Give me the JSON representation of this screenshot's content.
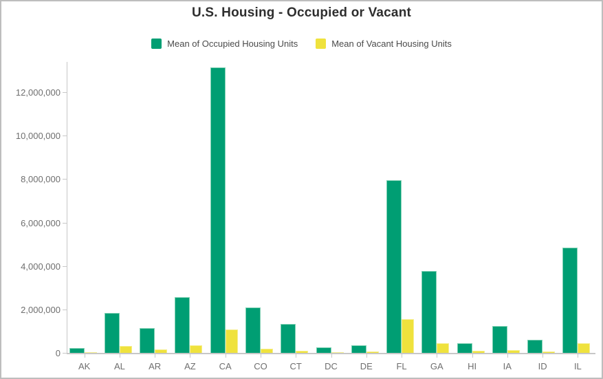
{
  "chart_data": {
    "type": "bar",
    "title": "U.S. Housing - Occupied or Vacant",
    "xlabel": "",
    "ylabel": "",
    "grid": false,
    "legend_position": "top",
    "ylim": [
      0,
      13400000
    ],
    "y_ticks": [
      {
        "value": 0,
        "label": "0"
      },
      {
        "value": 2000000,
        "label": "2,000,000"
      },
      {
        "value": 4000000,
        "label": "4,000,000"
      },
      {
        "value": 6000000,
        "label": "6,000,000"
      },
      {
        "value": 8000000,
        "label": "8,000,000"
      },
      {
        "value": 10000000,
        "label": "10,000,000"
      },
      {
        "value": 12000000,
        "label": "12,000,000"
      }
    ],
    "categories": [
      "AK",
      "AL",
      "AR",
      "AZ",
      "CA",
      "CO",
      "CT",
      "DC",
      "DE",
      "FL",
      "GA",
      "HI",
      "IA",
      "ID",
      "IL"
    ],
    "series": [
      {
        "name": "Mean of Occupied Housing Units",
        "color": "#009e73",
        "values": [
          230000,
          1840000,
          1130000,
          2570000,
          13150000,
          2100000,
          1330000,
          255000,
          340000,
          7940000,
          3780000,
          430000,
          1220000,
          600000,
          4860000
        ]
      },
      {
        "name": "Mean of Vacant Housing Units",
        "color": "#efe23d",
        "values": [
          40000,
          320000,
          150000,
          340000,
          1070000,
          180000,
          95000,
          35000,
          50000,
          1560000,
          440000,
          80000,
          120000,
          55000,
          430000
        ]
      }
    ]
  }
}
